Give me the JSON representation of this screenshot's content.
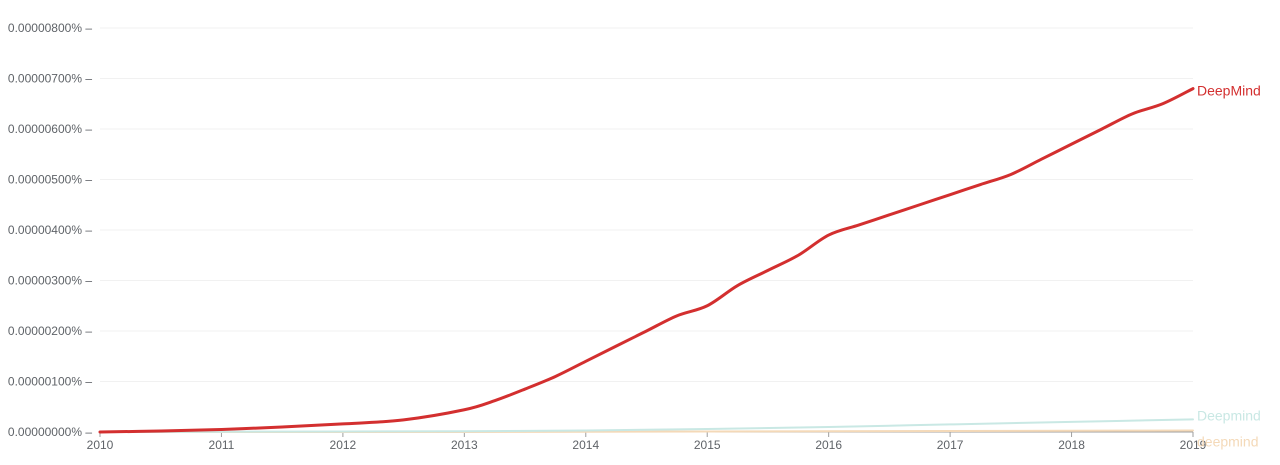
{
  "chart_data": {
    "type": "line",
    "title": "",
    "xlabel": "",
    "ylabel": "",
    "xlim": [
      2010,
      2019
    ],
    "ylim": [
      0,
      8e-06
    ],
    "y_unit": "%",
    "grid": true,
    "legend": "labels at line ends (right)",
    "x_ticks": [
      "2010",
      "2011",
      "2012",
      "2013",
      "2014",
      "2015",
      "2016",
      "2017",
      "2018",
      "2019"
    ],
    "y_ticks": [
      "0.00000000%",
      "0.00000100%",
      "0.00000200%",
      "0.00000300%",
      "0.00000400%",
      "0.00000500%",
      "0.00000600%",
      "0.00000700%",
      "0.00000800%"
    ],
    "y_tick_values": [
      0,
      1e-06,
      2e-06,
      3e-06,
      4e-06,
      5e-06,
      6e-06,
      7e-06,
      8e-06
    ],
    "series": [
      {
        "name": "DeepMind",
        "color": "#d32f2f",
        "x": [
          2010,
          2010.5,
          2011,
          2011.5,
          2012,
          2012.5,
          2013,
          2013.25,
          2013.5,
          2013.75,
          2014,
          2014.25,
          2014.5,
          2014.75,
          2015,
          2015.25,
          2015.5,
          2015.75,
          2016,
          2016.25,
          2016.5,
          2016.75,
          2017,
          2017.25,
          2017.5,
          2017.75,
          2018,
          2018.25,
          2018.5,
          2018.75,
          2019
        ],
        "values": [
          0.0,
          2e-08,
          5e-08,
          1e-07,
          1.6e-07,
          2.4e-07,
          4.4e-07,
          6.2e-07,
          8.5e-07,
          1.1e-06,
          1.4e-06,
          1.7e-06,
          2e-06,
          2.3e-06,
          2.5e-06,
          2.9e-06,
          3.2e-06,
          3.5e-06,
          3.9e-06,
          4.1e-06,
          4.3e-06,
          4.5e-06,
          4.7e-06,
          4.9e-06,
          5.1e-06,
          5.4e-06,
          5.7e-06,
          6e-06,
          6.3e-06,
          6.5e-06,
          6.8e-06
        ]
      },
      {
        "name": "Deepmind",
        "color": "#c9e8e4",
        "x": [
          2010,
          2011,
          2012,
          2013,
          2014,
          2015,
          2016,
          2017,
          2018,
          2019
        ],
        "values": [
          0,
          5e-09,
          1e-08,
          1.5e-08,
          3e-08,
          6e-08,
          1e-07,
          1.5e-07,
          2e-07,
          2.5e-07
        ]
      },
      {
        "name": "deepmind",
        "color": "#f4d9b8",
        "x": [
          2010,
          2011,
          2012,
          2013,
          2014,
          2015,
          2016,
          2017,
          2018,
          2019
        ],
        "values": [
          0,
          0,
          0,
          0,
          5e-09,
          1e-08,
          1.5e-08,
          2e-08,
          2.5e-08,
          3e-08
        ]
      }
    ]
  }
}
